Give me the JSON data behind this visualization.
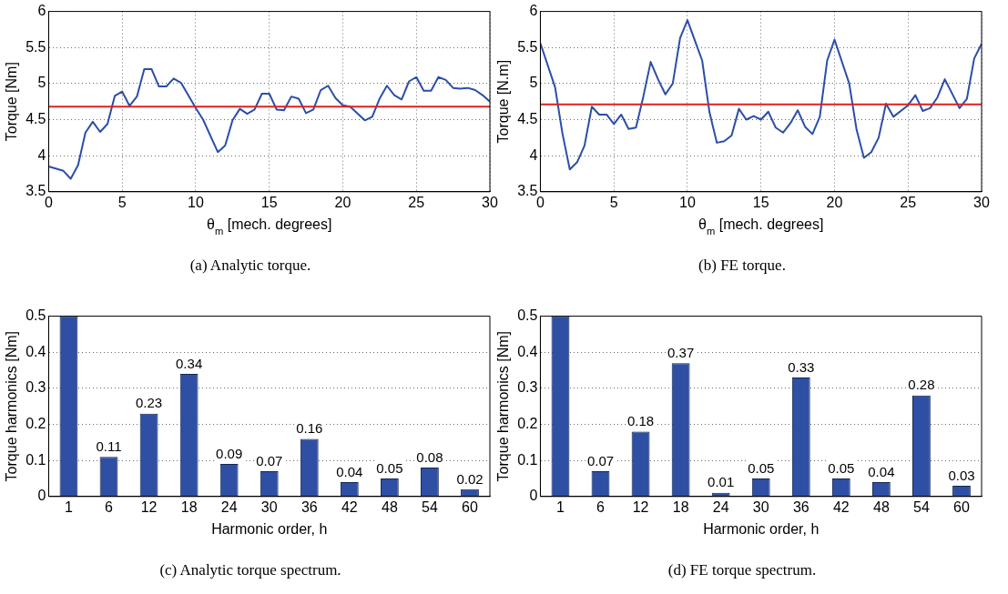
{
  "chart_data": [
    {
      "type": "line",
      "xlabel": "θ$_{m}$ [mech. degrees]",
      "ylabel": "Torque [Nm]",
      "xlim": [
        0,
        30
      ],
      "xticks": [
        0,
        5,
        10,
        15,
        20,
        25,
        30
      ],
      "ylim": [
        3.5,
        6
      ],
      "yticks": [
        3.5,
        4,
        4.5,
        5,
        5.5,
        6
      ],
      "grid": true,
      "legend": false,
      "annotations": [
        "(a)  Analytic torque."
      ],
      "ref_lines": [
        {
          "axis": "y",
          "value": 4.68,
          "color": "#e02020"
        }
      ],
      "series": [
        {
          "color": "#2b4ea8",
          "x": [
            0,
            1,
            1.5,
            2,
            2.5,
            3,
            3.5,
            4,
            4.5,
            5,
            5.5,
            6,
            6.5,
            7,
            7.5,
            8,
            8.5,
            9,
            10,
            10.5,
            11.5,
            12,
            12.5,
            13,
            13.5,
            14,
            14.5,
            15,
            15.5,
            16,
            16.5,
            17,
            17.5,
            18,
            18.5,
            19,
            19.5,
            20,
            20.5,
            21.5,
            22,
            22.5,
            23,
            23.5,
            24,
            24.5,
            25,
            25.5,
            26,
            26.5,
            27,
            27.5,
            28,
            28.5,
            29,
            29.5,
            30
          ],
          "values": [
            3.85,
            3.79,
            3.68,
            3.87,
            4.32,
            4.47,
            4.33,
            4.44,
            4.83,
            4.89,
            4.69,
            4.82,
            5.2,
            5.2,
            4.96,
            4.96,
            5.07,
            5.01,
            4.66,
            4.5,
            4.05,
            4.14,
            4.49,
            4.65,
            4.58,
            4.64,
            4.86,
            4.86,
            4.64,
            4.63,
            4.82,
            4.79,
            4.59,
            4.64,
            4.91,
            4.97,
            4.8,
            4.7,
            4.68,
            4.49,
            4.54,
            4.79,
            4.97,
            4.84,
            4.78,
            5.03,
            5.09,
            4.9,
            4.9,
            5.09,
            5.05,
            4.94,
            4.93,
            4.94,
            4.91,
            4.84,
            4.75
          ]
        }
      ]
    },
    {
      "type": "line",
      "xlabel": "θ$_{m}$ [mech. degrees]",
      "ylabel": "Torque [N.m]",
      "xlim": [
        0,
        30
      ],
      "xticks": [
        0,
        5,
        10,
        15,
        20,
        25,
        30
      ],
      "ylim": [
        3.5,
        6
      ],
      "yticks": [
        3.5,
        4,
        4.5,
        5,
        5.5,
        6
      ],
      "grid": true,
      "legend": false,
      "annotations": [
        "(b)  FE torque."
      ],
      "ref_lines": [
        {
          "axis": "y",
          "value": 4.71,
          "color": "#e02020"
        }
      ],
      "series": [
        {
          "color": "#2b4ea8",
          "x": [
            0,
            1,
            1.5,
            2,
            2.5,
            3,
            3.5,
            4,
            4.5,
            5,
            5.5,
            6,
            6.5,
            7,
            7.5,
            8,
            8.5,
            9,
            9.5,
            10,
            11,
            11.5,
            12,
            12.5,
            13,
            13.5,
            14,
            14.5,
            15,
            15.5,
            16,
            16.5,
            17,
            17.5,
            18,
            18.5,
            19,
            19.5,
            20,
            21,
            21.5,
            22,
            22.5,
            23,
            23.5,
            24,
            25,
            25.5,
            26,
            26.5,
            27,
            27.5,
            28.5,
            29,
            29.5,
            30
          ],
          "values": [
            5.56,
            4.95,
            4.31,
            3.81,
            3.91,
            4.14,
            4.68,
            4.57,
            4.57,
            4.44,
            4.57,
            4.37,
            4.39,
            4.82,
            5.3,
            5.06,
            4.85,
            5.0,
            5.63,
            5.88,
            5.32,
            4.6,
            4.18,
            4.2,
            4.28,
            4.65,
            4.5,
            4.55,
            4.5,
            4.61,
            4.39,
            4.32,
            4.45,
            4.63,
            4.4,
            4.3,
            4.54,
            5.32,
            5.61,
            5.0,
            4.36,
            3.97,
            4.05,
            4.25,
            4.72,
            4.54,
            4.7,
            4.84,
            4.62,
            4.66,
            4.81,
            5.06,
            4.66,
            4.79,
            5.35,
            5.55
          ]
        }
      ]
    },
    {
      "type": "bar",
      "xlabel": "Harmonic order, h",
      "ylabel": "Torque harmonics [Nm]",
      "ylim": [
        0,
        0.5
      ],
      "yticks": [
        0,
        0.1,
        0.2,
        0.3,
        0.4,
        0.5
      ],
      "grid": "y",
      "legend": false,
      "annotations": [
        "(c)  Analytic torque spectrum."
      ],
      "categories": [
        "1",
        "6",
        "12",
        "18",
        "24",
        "30",
        "36",
        "42",
        "48",
        "54",
        "60"
      ],
      "color": "#2e4fa3",
      "values": [
        0.5,
        0.11,
        0.23,
        0.34,
        0.09,
        0.07,
        0.16,
        0.04,
        0.05,
        0.08,
        0.02
      ],
      "value_labels": [
        null,
        "0.11",
        "0.23",
        "0.34",
        "0.09",
        "0.07",
        "0.16",
        "0.04",
        "0.05",
        "0.08",
        "0.02"
      ]
    },
    {
      "type": "bar",
      "xlabel": "Harmonic order, h",
      "ylabel": "Torque harmonics [Nm]",
      "ylim": [
        0,
        0.5
      ],
      "yticks": [
        0,
        0.1,
        0.2,
        0.3,
        0.4,
        0.5
      ],
      "grid": "y",
      "legend": false,
      "annotations": [
        "(d)  FE torque spectrum."
      ],
      "categories": [
        "1",
        "6",
        "12",
        "18",
        "24",
        "30",
        "36",
        "42",
        "48",
        "54",
        "60"
      ],
      "color": "#2e4fa3",
      "values": [
        0.5,
        0.07,
        0.18,
        0.37,
        0.01,
        0.05,
        0.33,
        0.05,
        0.04,
        0.28,
        0.03
      ],
      "value_labels": [
        null,
        "0.07",
        "0.18",
        "0.37",
        "0.01",
        "0.05",
        "0.33",
        "0.05",
        "0.04",
        "0.28",
        "0.03"
      ]
    }
  ]
}
